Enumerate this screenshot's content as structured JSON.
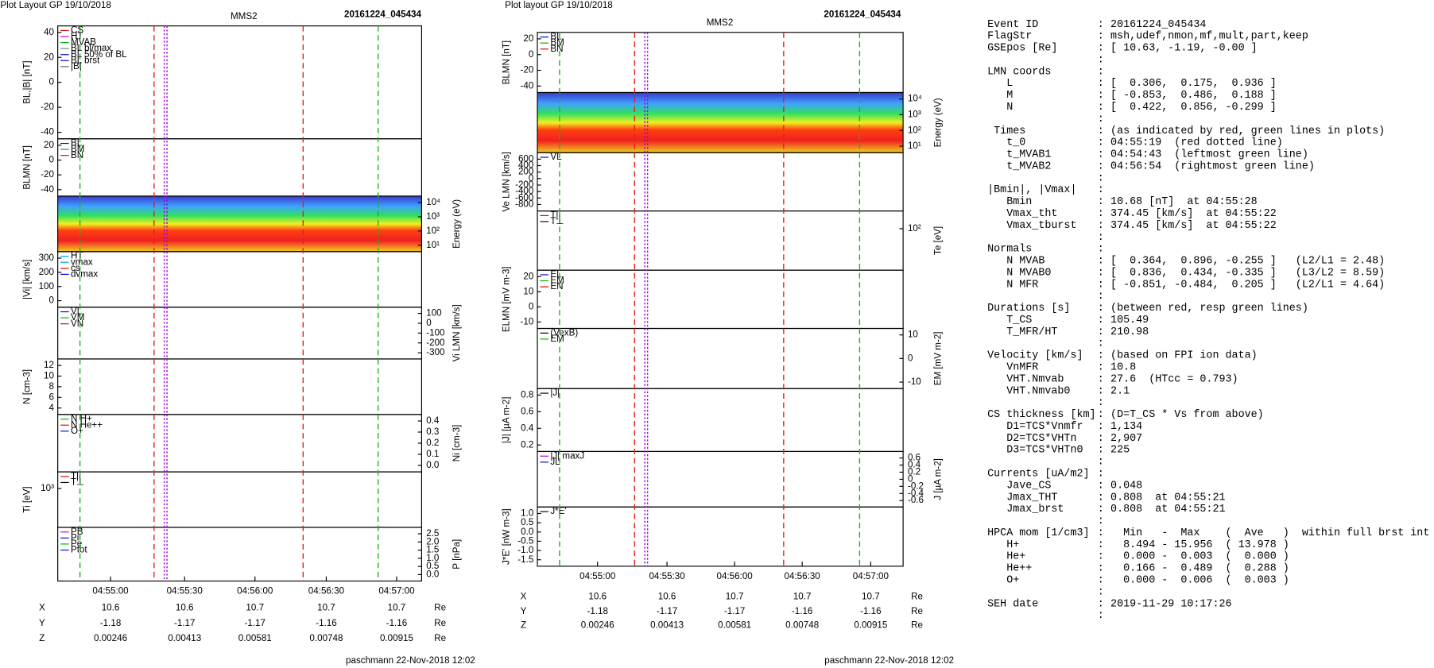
{
  "left": {
    "header": "Plot Layout GP 19/10/2018",
    "title": "MMS2",
    "event": "20161224_045434",
    "panels": [
      {
        "ylabel": "BL,|B| [nT]",
        "yticks": [
          40,
          20,
          0,
          -20,
          -40
        ],
        "legend": [
          {
            "text": "CS",
            "color": "#e00000"
          },
          {
            "text": "HT",
            "color": "#c000c0"
          },
          {
            "text": "MVAB",
            "color": "#00b000"
          },
          {
            "text": "BL bl/max",
            "color": "#808080"
          },
          {
            "text": "BL 50% of BL",
            "color": "#0000e0"
          },
          {
            "text": "BL brst",
            "color": "#0000e0"
          },
          {
            "text": "|B|",
            "color": "#606060"
          }
        ]
      },
      {
        "ylabel": "BLMN [nT]",
        "yticks": [
          20,
          0,
          -20,
          -40
        ],
        "legend": [
          {
            "text": "BL",
            "color": "#0000e0"
          },
          {
            "text": "BM",
            "color": "#00b000"
          },
          {
            "text": "BN",
            "color": "#e00000"
          }
        ]
      },
      {
        "kind": "spectrogram",
        "y2label": "Energy (eV)",
        "y2ticks": [
          "10⁴",
          "10³",
          "10²",
          "10¹"
        ]
      },
      {
        "ylabel": "|Vi| [km/s]",
        "yticks": [
          300,
          200,
          100,
          0
        ],
        "legend": [
          {
            "text": "HT",
            "color": "#00a0e0"
          },
          {
            "text": "vmax",
            "color": "#00a0e0"
          },
          {
            "text": "cs",
            "color": "#e00000"
          },
          {
            "text": "dvmax",
            "color": "#0000e0"
          }
        ]
      },
      {
        "y2label": "Vi LMN [km/s]",
        "y2ticks": [
          100,
          0,
          -100,
          -200,
          -300
        ],
        "legend": [
          {
            "text": "VL",
            "color": "#0000e0"
          },
          {
            "text": "VM",
            "color": "#00b000"
          },
          {
            "text": "VN",
            "color": "#e00000"
          }
        ]
      },
      {
        "ylabel": "N [cm-3]",
        "yticks": [
          12,
          10,
          8,
          6,
          4
        ]
      },
      {
        "y2label": "Ni [cm-3]",
        "y2ticks": [
          0.4,
          0.3,
          0.2,
          0.1,
          "0.0"
        ],
        "legend": [
          {
            "text": "N H+",
            "color": "#00b000"
          },
          {
            "text": "N He++",
            "color": "#e00000"
          },
          {
            "text": "O+",
            "color": "#0000e0"
          }
        ]
      },
      {
        "ylabel": "Ti [eV]",
        "yticks": [
          "10³"
        ],
        "legend": [
          {
            "text": "T||",
            "color": "#e00000"
          },
          {
            "text": "T⊥",
            "color": "#000000"
          }
        ]
      },
      {
        "y2label": "P [nPa]",
        "y2ticks": [
          2.5,
          "2.0",
          1.5,
          "1.0",
          0.5,
          "0.0"
        ],
        "legend": [
          {
            "text": "PB",
            "color": "#c000c0"
          },
          {
            "text": "Pi",
            "color": "#0000e0"
          },
          {
            "text": "Pe",
            "color": "#00b000"
          },
          {
            "text": "Ptot",
            "color": "#0000e0"
          }
        ]
      }
    ],
    "xticks": [
      "04:55:00",
      "04:55:30",
      "04:56:00",
      "04:56:30",
      "04:57:00"
    ],
    "ephemeris": [
      {
        "label": "X",
        "values": [
          10.6,
          10.6,
          10.7,
          10.7,
          10.7
        ],
        "unit": "Re"
      },
      {
        "label": "Y",
        "values": [
          -1.18,
          -1.17,
          -1.17,
          -1.16,
          -1.16
        ],
        "unit": "Re"
      },
      {
        "label": "Z",
        "values": [
          0.00246,
          0.00413,
          0.00581,
          0.00748,
          0.00915
        ],
        "unit": "Re"
      }
    ],
    "footer": "paschmann 22-Nov-2018 12:02"
  },
  "middle": {
    "header": "Plot layout GP 19/10/2018",
    "title": "MMS2",
    "event": "20161224_045434",
    "panels": [
      {
        "ylabel": "BLMN [nT]",
        "yticks": [
          20,
          0,
          -20,
          -40
        ],
        "legend": [
          {
            "text": "BL",
            "color": "#0000e0"
          },
          {
            "text": "BM",
            "color": "#00b000"
          },
          {
            "text": "BN",
            "color": "#e00000"
          }
        ]
      },
      {
        "kind": "spectrogram",
        "y2label": "Energy (eV)",
        "y2ticks": [
          "10⁴",
          "10³",
          "10²",
          "10¹"
        ]
      },
      {
        "ylabel": "Ve LMN [km/s]",
        "yticks": [
          600,
          400,
          200,
          0,
          -200,
          -400,
          -600,
          -800
        ],
        "legend": [
          {
            "text": "VL",
            "color": "#0000e0"
          }
        ]
      },
      {
        "y2label": "Te [eV]",
        "y2ticks": [
          "10²"
        ],
        "legend": [
          {
            "text": "T||",
            "color": "#e00000"
          },
          {
            "text": "T⊥",
            "color": "#000000"
          }
        ]
      },
      {
        "ylabel": "ELMN [mV m-3]",
        "yticks": [
          20,
          10,
          0,
          -10
        ],
        "legend": [
          {
            "text": "EL",
            "color": "#0000e0"
          },
          {
            "text": "EM",
            "color": "#00b000"
          },
          {
            "text": "EN",
            "color": "#e00000"
          }
        ]
      },
      {
        "y2label": "EM [mV m-2]",
        "y2ticks": [
          10,
          0,
          -10
        ],
        "legend": [
          {
            "text": "(VexB)",
            "color": "#000000"
          },
          {
            "text": "EM",
            "color": "#00b000"
          }
        ]
      },
      {
        "ylabel": "|J| [µA m-2]",
        "yticks": [
          0.8,
          0.6,
          0.4,
          0.2
        ],
        "legend": [
          {
            "text": "|J|",
            "color": "#000000"
          }
        ]
      },
      {
        "y2label": "J [µA m-2]",
        "y2ticks": [
          0.6,
          0.4,
          0.2,
          0,
          -0.2,
          -0.4,
          -0.6
        ],
        "legend": [
          {
            "text": "|J| maxJ",
            "color": "#c000c0"
          },
          {
            "text": "JL",
            "color": "#0000e0"
          }
        ]
      },
      {
        "ylabel": "J*E' [nW m-3]",
        "yticks": [
          "1.0",
          0.5,
          "0.0",
          -0.5,
          "-1.0",
          -1.5
        ],
        "legend": [
          {
            "text": "J*E'",
            "color": "#000000"
          }
        ]
      }
    ],
    "xticks": [
      "04:55:00",
      "04:55:30",
      "04:56:00",
      "04:56:30",
      "04:57:00"
    ],
    "ephemeris": [
      {
        "label": "X",
        "values": [
          10.6,
          10.6,
          10.7,
          10.7,
          10.7
        ],
        "unit": "Re"
      },
      {
        "label": "Y",
        "values": [
          -1.18,
          -1.17,
          -1.17,
          -1.16,
          -1.16
        ],
        "unit": "Re"
      },
      {
        "label": "Z",
        "values": [
          0.00246,
          0.00413,
          0.00581,
          0.00748,
          0.00915
        ],
        "unit": "Re"
      }
    ],
    "footer": "paschmann 22-Nov-2018 12:02"
  },
  "info": {
    "groups": [
      [
        [
          "Event ID",
          "20161224_045434"
        ],
        [
          "FlagStr",
          "msh,udef,nmon,mf,mult,part,keep"
        ],
        [
          "GSEpos [Re]",
          "[ 10.63, -1.19, -0.00 ]"
        ]
      ],
      [
        [
          "LMN coords"
        ],
        [
          "   L",
          "[  0.306,  0.175,  0.936 ]"
        ],
        [
          "   M",
          "[ -0.853,  0.486,  0.188 ]"
        ],
        [
          "   N",
          "[  0.422,  0.856, -0.299 ]"
        ]
      ],
      [
        [
          " Times",
          "(as indicated by red, green lines in plots)"
        ],
        [
          "   t_0",
          "04:55:19  (red dotted line)"
        ],
        [
          "   t_MVAB1",
          "04:54:43  (leftmost green line)"
        ],
        [
          "   t_MVAB2",
          "04:56:54  (rightmost green line)"
        ]
      ],
      [
        [
          "|Bmin|, |Vmax|"
        ],
        [
          "   Bmin",
          "10.68 [nT]  at 04:55:28"
        ],
        [
          "   Vmax_tht",
          "374.45 [km/s]  at 04:55:22"
        ],
        [
          "   Vmax_tburst",
          "374.45 [km/s]  at 04:55:22"
        ]
      ],
      [
        [
          "Normals"
        ],
        [
          "   N MVAB",
          "[  0.364,  0.896, -0.255 ]   (L2/L1 = 2.48)"
        ],
        [
          "   N MVAB0",
          "[  0.836,  0.434, -0.335 ]   (L3/L2 = 8.59)"
        ],
        [
          "   N MFR",
          "[ -0.851, -0.484,  0.205 ]   (L2/L1 = 4.64)"
        ]
      ],
      [
        [
          "Durations [s]",
          "(between red, resp green lines)"
        ],
        [
          "   T_CS",
          "105.49"
        ],
        [
          "   T_MFR/HT",
          "210.98"
        ]
      ],
      [
        [
          "Velocity [km/s]",
          "(based on FPI ion data)"
        ],
        [
          "   VnMFR",
          "10.8"
        ],
        [
          "   VHT.Nmvab",
          "27.6  (HTcc = 0.793)"
        ],
        [
          "   VHT.Nmvab0",
          "2.1"
        ]
      ],
      [
        [
          "CS thickness [km]",
          "(D=T_CS * Vs from above)"
        ],
        [
          "   D1=TCS*Vnmfr",
          "1,134"
        ],
        [
          "   D2=TCS*VHTn",
          "2,907"
        ],
        [
          "   D3=TCS*VHTn0",
          "225"
        ]
      ],
      [
        [
          "Currents [uA/m2]"
        ],
        [
          "   Jave_CS",
          "0.048"
        ],
        [
          "   Jmax_THT",
          "0.808  at 04:55:21"
        ],
        [
          "   Jmax_brst",
          "0.808  at 04:55:21"
        ]
      ],
      [
        [
          "HPCA mom [1/cm3]",
          "  Min   -  Max    (  Ave   )  within full brst int"
        ],
        [
          "   H+",
          "  8.494 - 15.956  ( 13.978 )"
        ],
        [
          "   He+",
          "  0.000 -  0.003  (  0.000 )"
        ],
        [
          "   He++",
          "  0.166 -  0.489  (  0.288 )"
        ],
        [
          "   O+",
          "  0.000 -  0.006  (  0.003 )"
        ]
      ],
      [
        [
          "SEH date",
          "2019-11-29 10:17:26"
        ]
      ]
    ]
  }
}
